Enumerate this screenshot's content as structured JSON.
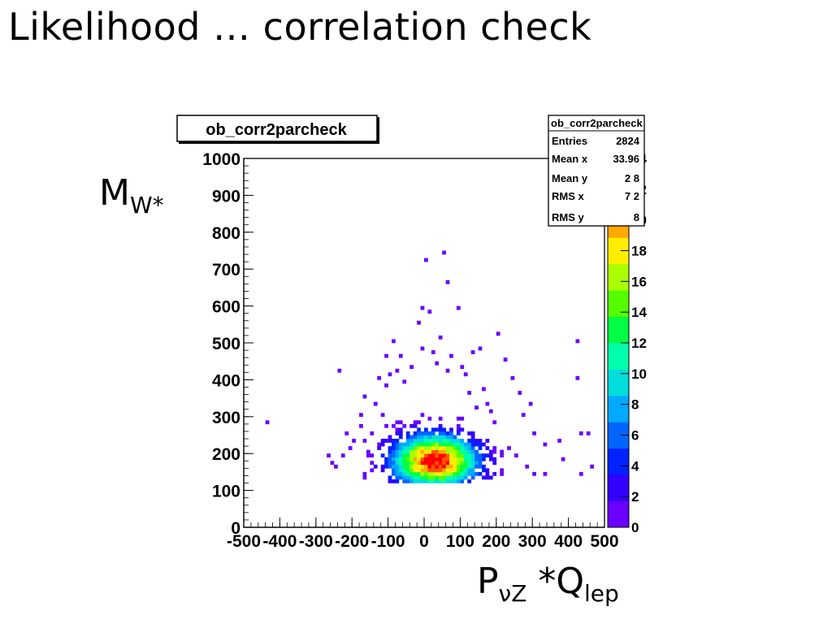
{
  "slide": {
    "title": "Likelihood … correlation check",
    "ylabel_main": "M",
    "ylabel_sub": "W*",
    "xlabel_main": "P",
    "xlabel_sub1": "νZ",
    "xlabel_mid": " *Q",
    "xlabel_sub2": "lep"
  },
  "stats_box": {
    "name": "ob_corr2parcheck",
    "rows": [
      {
        "label": "Entries",
        "value": "2824"
      },
      {
        "label": "Mean x",
        "value": "33.96"
      },
      {
        "label": "Mean y",
        "value": "2  8"
      },
      {
        "label": "RMS x",
        "value": "7  2"
      },
      {
        "label": "RMS y",
        "value": "8"
      }
    ]
  },
  "chart_data": {
    "type": "heatmap",
    "title": "ob_corr2parcheck",
    "xlabel": "",
    "ylabel": "",
    "xlim": [
      -500,
      500
    ],
    "ylim": [
      0,
      1000
    ],
    "xticks": [
      -500,
      -400,
      -300,
      -200,
      -100,
      0,
      100,
      200,
      300,
      400,
      500
    ],
    "xtick_labels": [
      "-500",
      "-400",
      "-300",
      "-200",
      "-100",
      "0",
      "100",
      "200",
      "300",
      "400",
      "500"
    ],
    "yticks": [
      0,
      100,
      200,
      300,
      400,
      500,
      600,
      700,
      800,
      900,
      1000
    ],
    "ytick_labels": [
      "0",
      "100",
      "200",
      "300",
      "400",
      "500",
      "600",
      "700",
      "800",
      "900",
      "1000"
    ],
    "zlim": [
      0,
      24
    ],
    "zticks": [
      0,
      2,
      4,
      6,
      8,
      10,
      12,
      14,
      16,
      18,
      20,
      22,
      24
    ],
    "ztick_labels": [
      "0",
      "2",
      "4",
      "6",
      "8",
      "10",
      "12",
      "14",
      "16",
      "18",
      "20",
      "22",
      "24"
    ],
    "palette": [
      "#6a00ff",
      "#3300ff",
      "#0022ff",
      "#0066ff",
      "#00aaff",
      "#00dddd",
      "#00ffaa",
      "#00ff44",
      "#55ff00",
      "#aaff00",
      "#ffee00",
      "#ffaa00",
      "#ff5500",
      "#ff0000"
    ],
    "entries": 2824,
    "bin_width_x": 10,
    "bin_height_y": 10,
    "sparse_points": [
      [
        -440,
        280
      ],
      [
        -240,
        420
      ],
      [
        -250,
        160
      ],
      [
        -230,
        190
      ],
      [
        -210,
        210
      ],
      [
        -200,
        230
      ],
      [
        -180,
        270
      ],
      [
        -160,
        200
      ],
      [
        -150,
        250
      ],
      [
        -130,
        400
      ],
      [
        -140,
        330
      ],
      [
        -120,
        300
      ],
      [
        -110,
        380
      ],
      [
        -90,
        500
      ],
      [
        -100,
        410
      ],
      [
        -70,
        460
      ],
      [
        -60,
        390
      ],
      [
        -40,
        430
      ],
      [
        -20,
        550
      ],
      [
        -10,
        590
      ],
      [
        -10,
        480
      ],
      [
        0,
        720
      ],
      [
        10,
        580
      ],
      [
        20,
        470
      ],
      [
        30,
        440
      ],
      [
        40,
        510
      ],
      [
        50,
        740
      ],
      [
        60,
        660
      ],
      [
        60,
        420
      ],
      [
        70,
        460
      ],
      [
        90,
        590
      ],
      [
        100,
        430
      ],
      [
        110,
        410
      ],
      [
        130,
        470
      ],
      [
        150,
        480
      ],
      [
        160,
        370
      ],
      [
        170,
        330
      ],
      [
        180,
        310
      ],
      [
        200,
        520
      ],
      [
        220,
        450
      ],
      [
        240,
        400
      ],
      [
        260,
        360
      ],
      [
        270,
        300
      ],
      [
        290,
        330
      ],
      [
        300,
        250
      ],
      [
        330,
        220
      ],
      [
        370,
        230
      ],
      [
        380,
        180
      ],
      [
        420,
        500
      ],
      [
        420,
        400
      ],
      [
        430,
        250
      ],
      [
        450,
        250
      ],
      [
        430,
        140
      ],
      [
        460,
        160
      ],
      [
        210,
        200
      ],
      [
        230,
        210
      ],
      [
        250,
        190
      ],
      [
        280,
        160
      ],
      [
        300,
        140
      ],
      [
        330,
        140
      ],
      [
        -260,
        170
      ],
      [
        -220,
        250
      ],
      [
        -180,
        300
      ],
      [
        -170,
        350
      ],
      [
        -110,
        460
      ],
      [
        -80,
        420
      ],
      [
        120,
        360
      ],
      [
        140,
        320
      ],
      [
        190,
        280
      ],
      [
        -270,
        190
      ]
    ],
    "core": {
      "center_x": 30,
      "center_y": 180,
      "sigma_x": 75,
      "sigma_y": 45,
      "peak": 24
    }
  }
}
